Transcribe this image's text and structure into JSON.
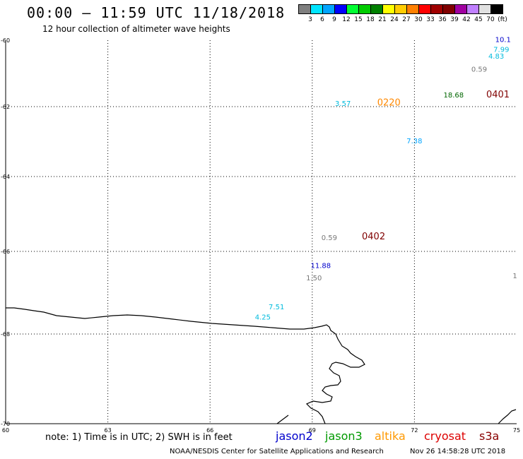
{
  "header": {
    "title": "00:00 – 11:59 UTC 11/18/2018",
    "subtitle": "12 hour collection of altimeter wave heights"
  },
  "colorbar": {
    "colors": [
      "#7f7f7f",
      "#00e5ff",
      "#00a5ff",
      "#0000ff",
      "#00ff33",
      "#00cc00",
      "#008000",
      "#ffff00",
      "#ffcc00",
      "#ff8000",
      "#ff0000",
      "#a00000",
      "#800000",
      "#a000a0",
      "#c080ff",
      "#e0e0e0",
      "#000000"
    ],
    "labels": [
      "3",
      "6",
      "9",
      "12",
      "15",
      "18",
      "21",
      "24",
      "27",
      "30",
      "33",
      "36",
      "39",
      "42",
      "45",
      "70",
      "(ft)"
    ]
  },
  "axes": {
    "lat_labels": [
      "-60",
      "-62",
      "-64",
      "-66",
      "-68",
      "-70"
    ],
    "lon_labels": [
      "60",
      "63",
      "66",
      "69",
      "72",
      "75"
    ],
    "lat_range": [
      -70,
      -60
    ],
    "lon_range": [
      60,
      75
    ]
  },
  "observations": [
    {
      "lon": 74.6,
      "lat": -60.05,
      "text": "10.1",
      "color": "#0000cc"
    },
    {
      "lon": 74.55,
      "lat": -60.35,
      "text": "7.99",
      "color": "#00bbdd"
    },
    {
      "lon": 74.4,
      "lat": -60.55,
      "text": "4.83",
      "color": "#00bbdd"
    },
    {
      "lon": 73.9,
      "lat": -60.95,
      "text": "0.59",
      "color": "#777777"
    },
    {
      "lon": 73.15,
      "lat": -61.72,
      "text": "18.68",
      "color": "#006600"
    },
    {
      "lon": 74.45,
      "lat": -61.72,
      "text": "0401",
      "color": "#800000",
      "big": true
    },
    {
      "lon": 69.9,
      "lat": -61.98,
      "text": "3.57",
      "color": "#00bbdd"
    },
    {
      "lon": 71.25,
      "lat": -61.97,
      "text": "0220",
      "color": "#ff8800",
      "big": true
    },
    {
      "lon": 72.0,
      "lat": -63.05,
      "text": "7.38",
      "color": "#00a5ff"
    },
    {
      "lon": 69.5,
      "lat": -65.7,
      "text": "0.59",
      "color": "#777777"
    },
    {
      "lon": 70.8,
      "lat": -65.68,
      "text": "0402",
      "color": "#800000",
      "big": true
    },
    {
      "lon": 69.25,
      "lat": -66.4,
      "text": "11.88",
      "color": "#0000cc"
    },
    {
      "lon": 69.05,
      "lat": -66.7,
      "text": "1.50",
      "color": "#777777"
    },
    {
      "lon": 74.95,
      "lat": -66.65,
      "text": "1",
      "color": "#777777"
    },
    {
      "lon": 67.95,
      "lat": -67.4,
      "text": "7.51",
      "color": "#00bbdd"
    },
    {
      "lon": 67.55,
      "lat": -67.65,
      "text": "4.25",
      "color": "#00bbdd"
    }
  ],
  "footer": {
    "note": "note:  1) Time is in UTC;  2) SWH is in feet",
    "legend": [
      {
        "name": "jason2",
        "color": "#0000cc"
      },
      {
        "name": "jason3",
        "color": "#009900"
      },
      {
        "name": "altika",
        "color": "#ff9900"
      },
      {
        "name": "cryosat",
        "color": "#dd0000"
      },
      {
        "name": "s3a",
        "color": "#880000"
      }
    ],
    "credit": "NOAA/NESDIS Center for Satellite Applications and Research",
    "timestamp": "Nov 26 14:58:28 UTC 2018"
  }
}
